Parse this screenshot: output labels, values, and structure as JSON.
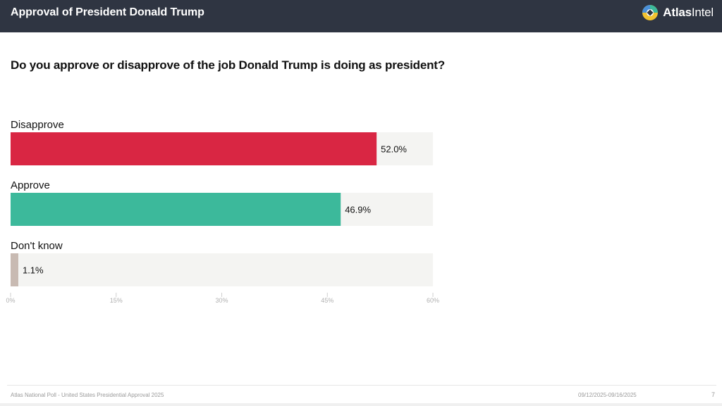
{
  "header": {
    "title": "Approval of President Donald Trump",
    "brand_bold": "Atlas",
    "brand_rest": "Intel"
  },
  "colors": {
    "header_bg": "#2f3542",
    "disapprove": "#d92643",
    "approve": "#3cb99b",
    "dont_know": "#c8bab2",
    "track": "#f4f4f2"
  },
  "chart_data": {
    "type": "bar",
    "orientation": "horizontal",
    "title": "Do you approve or disapprove of the job Donald Trump is doing as president?",
    "categories": [
      "Disapprove",
      "Approve",
      "Don't know"
    ],
    "values": [
      52.0,
      46.9,
      1.1
    ],
    "data_labels": [
      "52.0%",
      "46.9%",
      "1.1%"
    ],
    "bar_colors": [
      "#d92643",
      "#3cb99b",
      "#c8bab2"
    ],
    "xlim": [
      0,
      60
    ],
    "xticks": [
      0,
      15,
      30,
      45,
      60
    ],
    "xtick_labels": [
      "0%",
      "15%",
      "30%",
      "45%",
      "60%"
    ],
    "xlabel": "",
    "ylabel": ""
  },
  "footer": {
    "source": "Atlas National Poll - United States Presidential Approval 2025",
    "date_range": "09/12/2025-09/16/2025",
    "page": "7"
  }
}
